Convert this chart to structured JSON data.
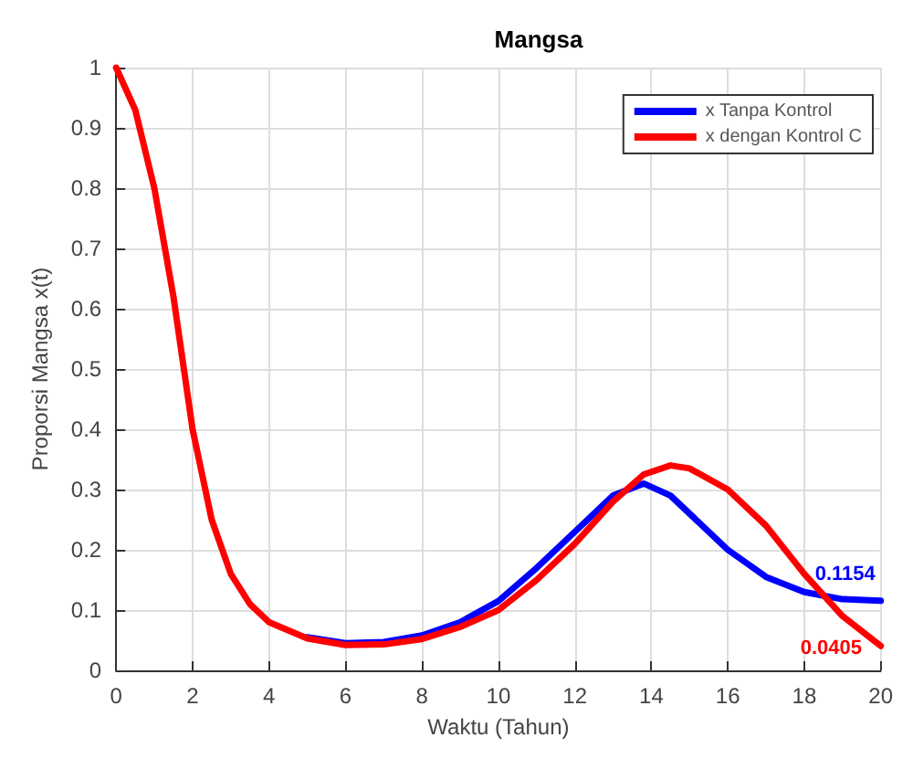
{
  "chart_data": {
    "type": "line",
    "title": "Mangsa",
    "xlabel": "Waktu (Tahun)",
    "ylabel": "Proporsi Mangsa x(t)",
    "x": [
      0,
      0.5,
      1,
      1.5,
      2,
      2.5,
      3,
      3.5,
      4,
      5,
      6,
      7,
      8,
      9,
      10,
      11,
      12,
      13,
      13.8,
      14.5,
      15,
      16,
      17,
      18,
      19,
      20
    ],
    "series": [
      {
        "name": "x Tanpa Kontrol",
        "color": "#0000ff",
        "values": [
          null,
          null,
          null,
          null,
          null,
          null,
          null,
          null,
          null,
          0.055,
          0.045,
          0.047,
          0.058,
          0.08,
          0.115,
          0.17,
          0.23,
          0.29,
          0.31,
          0.29,
          0.26,
          0.2,
          0.155,
          0.13,
          0.118,
          0.1154
        ],
        "value_labels": [
          null,
          null,
          null,
          null,
          null,
          null,
          null,
          null,
          null,
          null,
          null,
          null,
          null,
          null,
          null,
          null,
          null,
          null,
          null,
          null,
          null,
          null,
          null,
          null,
          null,
          "0.1154"
        ]
      },
      {
        "name": "x dengan Kontrol C",
        "color": "#ff0000",
        "values": [
          1,
          0.93,
          0.8,
          0.62,
          0.4,
          0.25,
          0.16,
          0.11,
          0.08,
          0.053,
          0.042,
          0.043,
          0.052,
          0.072,
          0.1,
          0.15,
          0.21,
          0.28,
          0.325,
          0.34,
          0.335,
          0.3,
          0.24,
          0.16,
          0.09,
          0.0405
        ],
        "value_labels": [
          null,
          null,
          null,
          null,
          null,
          null,
          null,
          null,
          null,
          null,
          null,
          null,
          null,
          null,
          null,
          null,
          null,
          null,
          null,
          null,
          null,
          null,
          null,
          null,
          null,
          "0.0405"
        ]
      }
    ],
    "xlim": [
      0,
      20
    ],
    "xticks": [
      0,
      2,
      4,
      6,
      8,
      10,
      12,
      14,
      16,
      18,
      20
    ],
    "ylim": [
      0,
      1
    ],
    "yticks": [
      0,
      0.1,
      0.2,
      0.3,
      0.4,
      0.5,
      0.6,
      0.7,
      0.8,
      0.9,
      1
    ],
    "grid": true,
    "legend": "top right",
    "marker": "none",
    "line_style": "solid"
  }
}
